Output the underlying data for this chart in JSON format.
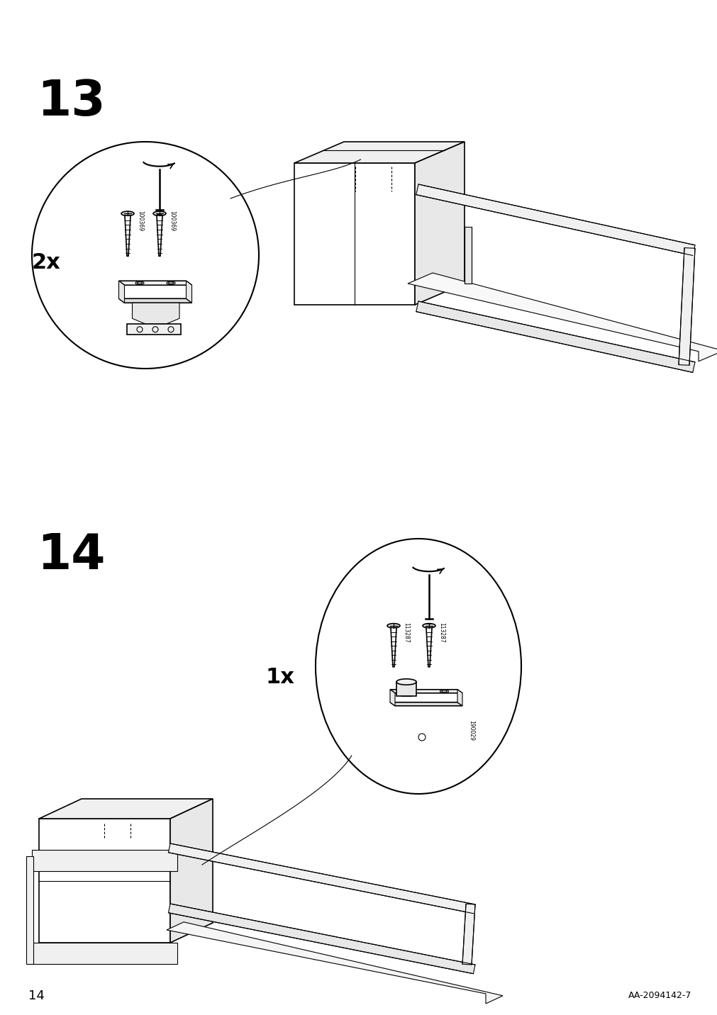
{
  "page_number": "14",
  "bottom_right_text": "AA-2094142-7",
  "background_color": "#ffffff",
  "line_color": "#000000",
  "step13_number": "13",
  "step13_multiplier": "2x",
  "step13_part1": "100369",
  "step13_part2": "100369",
  "step14_number": "14",
  "step14_multiplier": "1x",
  "step14_part1": "113287",
  "step14_part2": "113287",
  "step14_part3": "190029"
}
